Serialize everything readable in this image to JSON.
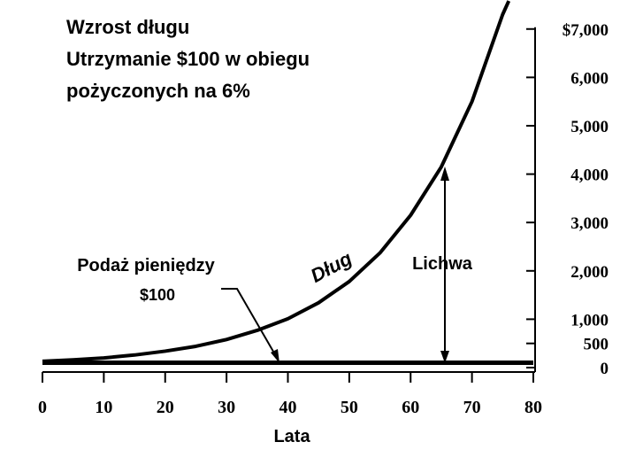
{
  "chart_data": {
    "type": "line",
    "title": [
      "Wzrost długu",
      "Utrzymanie $100 w obiegu",
      "pożyczonych na 6%"
    ],
    "x_label": "Lata",
    "xlim": [
      0,
      80
    ],
    "xticks": [
      0,
      10,
      20,
      30,
      40,
      50,
      60,
      70,
      80
    ],
    "ylim": [
      0,
      7600
    ],
    "yticks": [
      0,
      500,
      {
        "value": 1000,
        "label": "1,000"
      },
      {
        "value": 2000,
        "label": "2,000"
      },
      {
        "value": 3000,
        "label": "3,000"
      },
      {
        "value": 4000,
        "label": "4,000"
      },
      {
        "value": 5000,
        "label": "5,000"
      },
      {
        "value": 6000,
        "label": "6,000"
      },
      {
        "value": 7000,
        "label": "$7,000"
      }
    ],
    "series": [
      {
        "name": "Dług",
        "color": "#000000",
        "x": [
          0,
          5,
          10,
          15,
          20,
          25,
          30,
          35,
          40,
          45,
          50,
          55,
          60,
          65,
          70,
          75,
          76
        ],
        "values": [
          130,
          160,
          200,
          260,
          340,
          440,
          580,
          770,
          1010,
          1340,
          1780,
          2370,
          3150,
          4150,
          5500,
          7300,
          7580
        ]
      },
      {
        "name": "Podaż pieniędzy",
        "color": "#000000",
        "x": [
          0,
          80
        ],
        "values": [
          100,
          100
        ]
      }
    ],
    "annotations": [
      "$100",
      "Lichwa"
    ]
  }
}
